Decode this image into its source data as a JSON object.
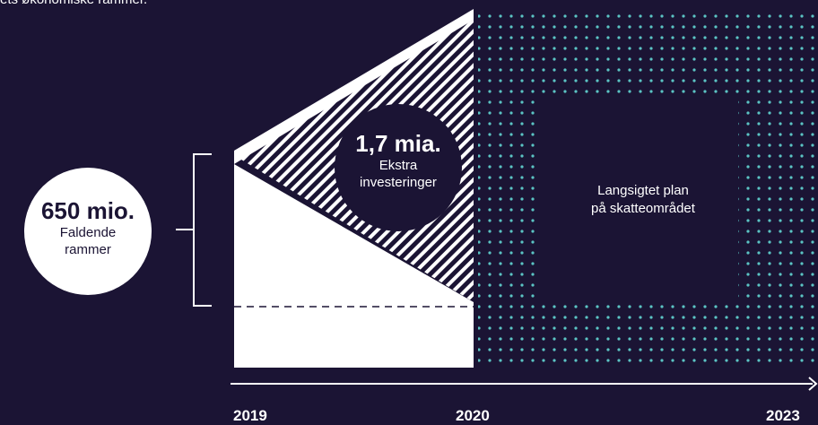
{
  "header": {
    "text": "ets økonomiske rammer."
  },
  "left_circle": {
    "value": "650 mio.",
    "line1": "Faldende",
    "line2": "rammer"
  },
  "center_circle": {
    "value": "1,7 mia.",
    "line1": "Ekstra",
    "line2": "investeringer"
  },
  "plan_box": {
    "line1": "Langsigtet plan",
    "line2": "på skatteområdet"
  },
  "timeline": {
    "years": [
      "2019",
      "2020",
      "2023"
    ]
  },
  "colors": {
    "background": "#1b1434",
    "white": "#ffffff",
    "dots": "#5bc4c4"
  }
}
